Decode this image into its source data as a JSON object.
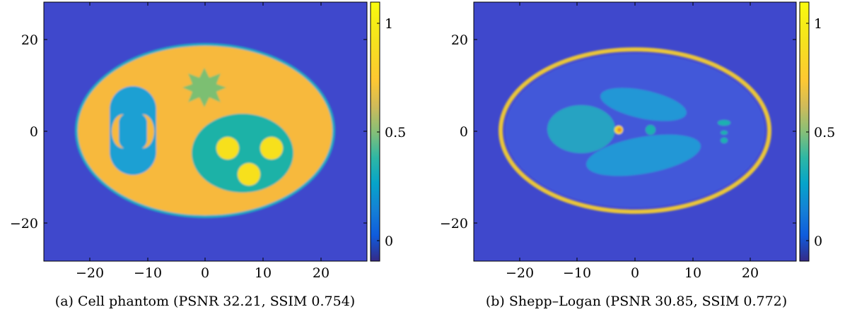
{
  "panels": [
    {
      "caption": "(a) Cell phantom (PSNR 32.21, SSIM 0.754)",
      "x_ticks": [
        "−20",
        "−10",
        "0",
        "10",
        "20"
      ],
      "y_ticks": [
        "20",
        "0",
        "−20"
      ],
      "colorbar_ticks": [
        "1",
        "0.5",
        "0"
      ]
    },
    {
      "caption": "(b) Shepp–Logan (PSNR 30.85, SSIM 0.772)",
      "x_ticks": [
        "−20",
        "−10",
        "0",
        "10",
        "20"
      ],
      "y_ticks": [
        "20",
        "0",
        "−20"
      ],
      "colorbar_ticks": [
        "1",
        "0.5",
        "0"
      ]
    }
  ],
  "chart_data": [
    {
      "type": "heatmap",
      "x_tick_values": [
        -20,
        -10,
        0,
        10,
        20
      ],
      "y_tick_values": [
        20,
        0,
        -20
      ],
      "xlim": [
        -28,
        28
      ],
      "ylim": [
        -28,
        28
      ],
      "colorbar_range": [
        -0.1,
        1.1
      ],
      "colorbar_tick_values": [
        1,
        0.5,
        0
      ],
      "colormap": "parula"
    },
    {
      "type": "heatmap",
      "x_tick_values": [
        -20,
        -10,
        0,
        10,
        20
      ],
      "y_tick_values": [
        20,
        0,
        -20
      ],
      "xlim": [
        -28,
        28
      ],
      "ylim": [
        -28,
        28
      ],
      "colorbar_range": [
        -0.1,
        1.1
      ],
      "colorbar_tick_values": [
        1,
        0.5,
        0
      ],
      "colormap": "parula"
    }
  ]
}
